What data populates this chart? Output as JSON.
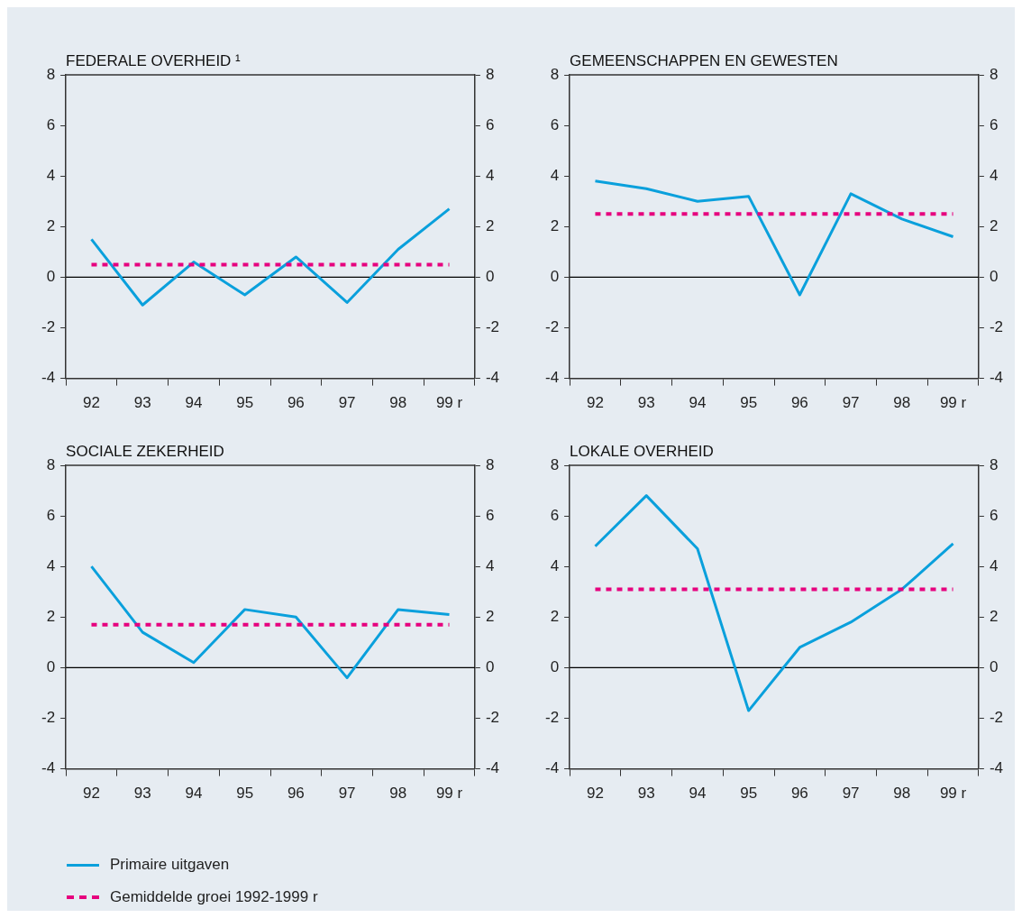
{
  "chart_data": [
    {
      "type": "line",
      "title": "FEDERALE OVERHEID ¹",
      "categories": [
        "92",
        "93",
        "94",
        "95",
        "96",
        "97",
        "98",
        "99 r"
      ],
      "series": [
        {
          "color": "#0aa0dc",
          "values": [
            1.5,
            -1.1,
            0.6,
            -0.7,
            0.8,
            -1.0,
            1.1,
            2.7
          ]
        },
        {
          "color": "#e6007e",
          "line_style": "dashed",
          "values": [
            0.5,
            0.5,
            0.5,
            0.5,
            0.5,
            0.5,
            0.5,
            0.5
          ]
        }
      ],
      "ylim": [
        -4,
        8
      ],
      "yticks": [
        -4,
        -2,
        0,
        2,
        4,
        6,
        8
      ],
      "y2lim": [
        -4,
        8
      ],
      "y2ticks": [
        -4,
        -2,
        0,
        2,
        4,
        6,
        8
      ],
      "grid": false,
      "marker": "none",
      "ref_lines": [
        {
          "axis": "y",
          "value": 0,
          "color": "#000000"
        }
      ]
    },
    {
      "type": "line",
      "title": "GEMEENSCHAPPEN EN GEWESTEN",
      "categories": [
        "92",
        "93",
        "94",
        "95",
        "96",
        "97",
        "98",
        "99 r"
      ],
      "series": [
        {
          "color": "#0aa0dc",
          "values": [
            3.8,
            3.5,
            3.0,
            3.2,
            -0.7,
            3.3,
            2.3,
            1.6
          ]
        },
        {
          "color": "#e6007e",
          "line_style": "dashed",
          "values": [
            2.5,
            2.5,
            2.5,
            2.5,
            2.5,
            2.5,
            2.5,
            2.5
          ]
        }
      ],
      "ylim": [
        -4,
        8
      ],
      "yticks": [
        -4,
        -2,
        0,
        2,
        4,
        6,
        8
      ],
      "y2lim": [
        -4,
        8
      ],
      "y2ticks": [
        -4,
        -2,
        0,
        2,
        4,
        6,
        8
      ],
      "grid": false,
      "marker": "none",
      "ref_lines": [
        {
          "axis": "y",
          "value": 0,
          "color": "#000000"
        }
      ]
    },
    {
      "type": "line",
      "title": "SOCIALE ZEKERHEID",
      "categories": [
        "92",
        "93",
        "94",
        "95",
        "96",
        "97",
        "98",
        "99 r"
      ],
      "series": [
        {
          "name": "Primaire uitgaven",
          "color": "#0aa0dc",
          "values": [
            4.0,
            1.4,
            0.2,
            2.3,
            2.0,
            -0.4,
            2.3,
            2.1
          ]
        },
        {
          "name": "Gemiddelde groei 1992-1999 r",
          "color": "#e6007e",
          "line_style": "dashed",
          "values": [
            1.7,
            1.7,
            1.7,
            1.7,
            1.7,
            1.7,
            1.7,
            1.7
          ]
        }
      ],
      "ylim": [
        -4,
        8
      ],
      "yticks": [
        -4,
        -2,
        0,
        2,
        4,
        6,
        8
      ],
      "y2lim": [
        -4,
        8
      ],
      "y2ticks": [
        -4,
        -2,
        0,
        2,
        4,
        6,
        8
      ],
      "grid": false,
      "marker": "none",
      "legend": "bottom",
      "ref_lines": [
        {
          "axis": "y",
          "value": 0,
          "color": "#000000"
        }
      ]
    },
    {
      "type": "line",
      "title": "LOKALE OVERHEID",
      "categories": [
        "92",
        "93",
        "94",
        "95",
        "96",
        "97",
        "98",
        "99 r"
      ],
      "series": [
        {
          "color": "#0aa0dc",
          "values": [
            4.8,
            6.8,
            4.7,
            -1.7,
            0.8,
            1.8,
            3.1,
            4.9
          ]
        },
        {
          "color": "#e6007e",
          "line_style": "dashed",
          "values": [
            3.1,
            3.1,
            3.1,
            3.1,
            3.1,
            3.1,
            3.1,
            3.1
          ]
        }
      ],
      "ylim": [
        -4,
        8
      ],
      "yticks": [
        -4,
        -2,
        0,
        2,
        4,
        6,
        8
      ],
      "y2lim": [
        -4,
        8
      ],
      "y2ticks": [
        -4,
        -2,
        0,
        2,
        4,
        6,
        8
      ],
      "grid": false,
      "marker": "none",
      "ref_lines": [
        {
          "axis": "y",
          "value": 0,
          "color": "#000000"
        }
      ]
    }
  ]
}
